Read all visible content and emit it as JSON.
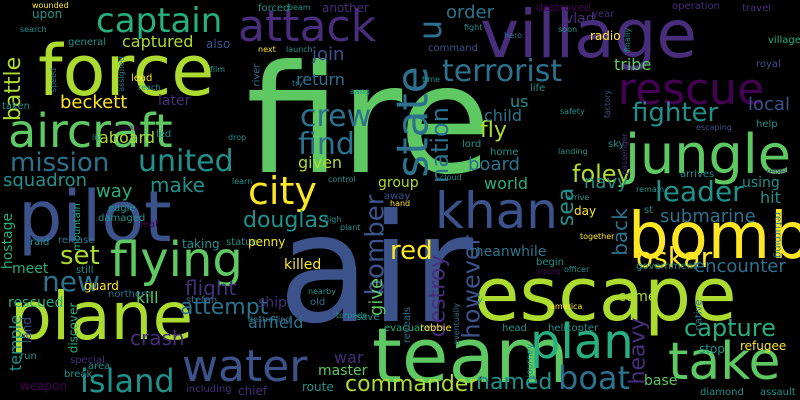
{
  "background": "#000000",
  "palette": [
    "#440154",
    "#472d7b",
    "#3b528b",
    "#2c728e",
    "#21918c",
    "#28ae80",
    "#5ec962",
    "#addc30",
    "#fde725"
  ],
  "words": [
    {
      "text": "fire",
      "color": "#5ec962"
    },
    {
      "text": "air",
      "color": "#3b528b"
    },
    {
      "text": "escape",
      "color": "#addc30"
    },
    {
      "text": "team",
      "color": "#5ec962"
    },
    {
      "text": "plane",
      "color": "#addc30"
    },
    {
      "text": "pilot",
      "color": "#3b528b"
    },
    {
      "text": "force",
      "color": "#addc30"
    },
    {
      "text": "village",
      "color": "#472d7b"
    },
    {
      "text": "bomb",
      "color": "#fde725"
    },
    {
      "text": "jungle",
      "color": "#5ec962"
    },
    {
      "text": "aircraft",
      "color": "#5ec962"
    },
    {
      "text": "take",
      "color": "#5ec962"
    },
    {
      "text": "khan",
      "color": "#3b528b"
    },
    {
      "text": "plan",
      "color": "#28ae80"
    },
    {
      "text": "water",
      "color": "#3b528b"
    },
    {
      "text": "rescue",
      "color": "#440154"
    },
    {
      "text": "flying",
      "color": "#5ec962"
    },
    {
      "text": "attack",
      "color": "#472d7b"
    },
    {
      "text": "captain",
      "color": "#28ae80"
    },
    {
      "text": "city",
      "color": "#fde725"
    },
    {
      "text": "state",
      "color": "#2c728e"
    },
    {
      "text": "island",
      "color": "#21918c"
    },
    {
      "text": "boat",
      "color": "#2c728e"
    },
    {
      "text": "terrorist",
      "color": "#2c728e"
    },
    {
      "text": "united",
      "color": "#21918c"
    },
    {
      "text": "mission",
      "color": "#2c728e"
    },
    {
      "text": "fighter",
      "color": "#21918c"
    },
    {
      "text": "leader",
      "color": "#21918c"
    },
    {
      "text": "find",
      "color": "#2c728e"
    },
    {
      "text": "crew",
      "color": "#2c728e"
    },
    {
      "text": "new",
      "color": "#2c728e"
    },
    {
      "text": "bomber",
      "color": "#3b528b"
    },
    {
      "text": "oskar",
      "color": "#fde725"
    },
    {
      "text": "set",
      "color": "#addc30"
    },
    {
      "text": "capture",
      "color": "#28ae80"
    },
    {
      "text": "commander",
      "color": "#addc30"
    },
    {
      "text": "foley",
      "color": "#addc30"
    },
    {
      "text": "attempt",
      "color": "#2c728e"
    },
    {
      "text": "douglas",
      "color": "#21918c"
    },
    {
      "text": "make",
      "color": "#21918c"
    },
    {
      "text": "nation",
      "color": "#2c728e"
    },
    {
      "text": "however",
      "color": "#3b528b"
    },
    {
      "text": "named",
      "color": "#21918c"
    },
    {
      "text": "crash",
      "color": "#472d7b"
    },
    {
      "text": "heavy",
      "color": "#472d7b"
    },
    {
      "text": "battle",
      "color": "#addc30"
    },
    {
      "text": "flight",
      "color": "#472d7b"
    },
    {
      "text": "destroy",
      "color": "#472d7b"
    },
    {
      "text": "local",
      "color": "#3b528b"
    },
    {
      "text": "sea",
      "color": "#21918c"
    },
    {
      "text": "back",
      "color": "#2c728e"
    },
    {
      "text": "red",
      "color": "#fde725"
    },
    {
      "text": "u",
      "color": "#2c728e"
    },
    {
      "text": "navy",
      "color": "#21918c"
    },
    {
      "text": "submarine",
      "color": "#2c728e"
    },
    {
      "text": "encounter",
      "color": "#2c728e"
    },
    {
      "text": "squadron",
      "color": "#21918c"
    },
    {
      "text": "way",
      "color": "#28ae80"
    },
    {
      "text": "captured",
      "color": "#addc30"
    },
    {
      "text": "beckett",
      "color": "#fde725"
    },
    {
      "text": "tribe",
      "color": "#5ec962"
    },
    {
      "text": "order",
      "color": "#2c728e"
    },
    {
      "text": "join",
      "color": "#3b528b"
    },
    {
      "text": "return",
      "color": "#2c728e"
    },
    {
      "text": "board",
      "color": "#2c728e"
    },
    {
      "text": "world",
      "color": "#28ae80"
    },
    {
      "text": "group",
      "color": "#addc30"
    },
    {
      "text": "using",
      "color": "#21918c"
    },
    {
      "text": "hit",
      "color": "#21918c"
    },
    {
      "text": "killed",
      "color": "#fde725"
    },
    {
      "text": "given",
      "color": "#addc30"
    },
    {
      "text": "fly",
      "color": "#addc30"
    },
    {
      "text": "us",
      "color": "#21918c"
    },
    {
      "text": "child",
      "color": "#2c728e"
    },
    {
      "text": "later",
      "color": "#472d7b"
    },
    {
      "text": "aboard",
      "color": "#addc30"
    },
    {
      "text": "kill",
      "color": "#5ec962"
    },
    {
      "text": "meet",
      "color": "#28ae80"
    },
    {
      "text": "rescued",
      "color": "#28ae80"
    },
    {
      "text": "temple",
      "color": "#21918c"
    },
    {
      "text": "ship",
      "color": "#472d7b"
    },
    {
      "text": "airfield",
      "color": "#2c728e"
    },
    {
      "text": "war",
      "color": "#472d7b"
    },
    {
      "text": "master",
      "color": "#5ec962"
    },
    {
      "text": "give",
      "color": "#5ec962"
    },
    {
      "text": "meanwhile",
      "color": "#2c728e"
    },
    {
      "text": "come",
      "color": "#addc30"
    },
    {
      "text": "base",
      "color": "#5ec962"
    },
    {
      "text": "refugee",
      "color": "#fde725"
    },
    {
      "text": "stop",
      "color": "#21918c"
    },
    {
      "text": "hostage",
      "color": "#28ae80"
    },
    {
      "text": "upon",
      "color": "#21918c"
    },
    {
      "text": "another",
      "color": "#472d7b"
    },
    {
      "text": "destroyed",
      "color": "#440154"
    },
    {
      "text": "vlad",
      "color": "#472d7b"
    },
    {
      "text": "year",
      "color": "#472d7b"
    },
    {
      "text": "operation",
      "color": "#472d7b"
    },
    {
      "text": "travel",
      "color": "#472d7b"
    },
    {
      "text": "royal",
      "color": "#3b528b"
    },
    {
      "text": "villager",
      "color": "#28ae80"
    },
    {
      "text": "help",
      "color": "#21918c"
    },
    {
      "text": "escaping",
      "color": "#3b528b"
    },
    {
      "text": "arrives",
      "color": "#21918c"
    },
    {
      "text": "remain",
      "color": "#21918c"
    },
    {
      "text": "leaf",
      "color": "#440154"
    },
    {
      "text": "eagle",
      "color": "#21918c"
    },
    {
      "text": "damaged",
      "color": "#21918c"
    },
    {
      "text": "mountain",
      "color": "#28ae80"
    },
    {
      "text": "discover",
      "color": "#28ae80"
    },
    {
      "text": "guard",
      "color": "#fde725"
    },
    {
      "text": "northern",
      "color": "#2c728e"
    },
    {
      "text": "stefan",
      "color": "#2c728e"
    },
    {
      "text": "taking",
      "color": "#21918c"
    },
    {
      "text": "statue",
      "color": "#21918c"
    },
    {
      "text": "penny",
      "color": "#fde725"
    },
    {
      "text": "release",
      "color": "#2c728e"
    },
    {
      "text": "raid",
      "color": "#21918c"
    },
    {
      "text": "still",
      "color": "#21918c"
    },
    {
      "text": "land",
      "color": "#3b528b"
    },
    {
      "text": "run",
      "color": "#21918c"
    },
    {
      "text": "special",
      "color": "#472d7b"
    },
    {
      "text": "break",
      "color": "#21918c"
    },
    {
      "text": "area",
      "color": "#21918c"
    },
    {
      "text": "weapon",
      "color": "#440154"
    },
    {
      "text": "including",
      "color": "#472d7b"
    },
    {
      "text": "chief",
      "color": "#472d7b"
    },
    {
      "text": "route",
      "color": "#21918c"
    },
    {
      "text": "torpedo",
      "color": "#21918c"
    },
    {
      "text": "destroying",
      "color": "#2c728e"
    },
    {
      "text": "old",
      "color": "#2c728e"
    },
    {
      "text": "nearby",
      "color": "#21918c"
    },
    {
      "text": "save",
      "color": "#21918c"
    },
    {
      "text": "evacuate",
      "color": "#28ae80"
    },
    {
      "text": "robbie",
      "color": "#fde725"
    },
    {
      "text": "head",
      "color": "#21918c"
    },
    {
      "text": "journey",
      "color": "#21918c"
    },
    {
      "text": "helicopter",
      "color": "#21918c"
    },
    {
      "text": "america",
      "color": "#fde725"
    },
    {
      "text": "diamond",
      "color": "#21918c"
    },
    {
      "text": "assault",
      "color": "#21918c"
    },
    {
      "text": "officer",
      "color": "#21918c"
    },
    {
      "text": "young",
      "color": "#440154"
    },
    {
      "text": "native",
      "color": "#2c728e"
    },
    {
      "text": "government",
      "color": "#21918c"
    },
    {
      "text": "together",
      "color": "#fde725"
    },
    {
      "text": "begin",
      "color": "#21918c"
    },
    {
      "text": "eventually",
      "color": "#2c728e"
    },
    {
      "text": "reveals",
      "color": "#2c728e"
    },
    {
      "text": "day",
      "color": "#fde725"
    },
    {
      "text": "arrive",
      "color": "#21918c"
    },
    {
      "text": "st",
      "color": "#21918c"
    },
    {
      "text": "sky",
      "color": "#21918c"
    },
    {
      "text": "rebel",
      "color": "#472d7b"
    },
    {
      "text": "cloud",
      "color": "#21918c"
    },
    {
      "text": "away",
      "color": "#3b528b"
    },
    {
      "text": "home",
      "color": "#21918c"
    },
    {
      "text": "lord",
      "color": "#21918c"
    },
    {
      "text": "life",
      "color": "#21918c"
    },
    {
      "text": "safety",
      "color": "#21918c"
    },
    {
      "text": "landing",
      "color": "#21918c"
    },
    {
      "text": "passenger",
      "color": "#472d7b"
    },
    {
      "text": "factory",
      "color": "#3b528b"
    },
    {
      "text": "finally",
      "color": "#21918c"
    },
    {
      "text": "radio",
      "color": "#fde725"
    },
    {
      "text": "soon",
      "color": "#21918c"
    },
    {
      "text": "hero",
      "color": "#2c728e"
    },
    {
      "text": "fight",
      "color": "#21918c"
    },
    {
      "text": "command",
      "color": "#3b528b"
    },
    {
      "text": "time",
      "color": "#21918c"
    },
    {
      "text": "aang",
      "color": "#21918c"
    },
    {
      "text": "launch",
      "color": "#21918c"
    },
    {
      "text": "beam",
      "color": "#21918c"
    },
    {
      "text": "forced",
      "color": "#21918c"
    },
    {
      "text": "next",
      "color": "#fde725"
    },
    {
      "text": "river",
      "color": "#2c728e"
    },
    {
      "text": "try",
      "color": "#2c728e"
    },
    {
      "text": "also",
      "color": "#3b528b"
    },
    {
      "text": "film",
      "color": "#21918c"
    },
    {
      "text": "reach",
      "color": "#21918c"
    },
    {
      "text": "lead",
      "color": "#fde725"
    },
    {
      "text": "speed",
      "color": "#2c728e"
    },
    {
      "text": "assigned",
      "color": "#2c728e"
    },
    {
      "text": "general",
      "color": "#21918c"
    },
    {
      "text": "search",
      "color": "#21918c"
    },
    {
      "text": "wounded",
      "color": "#fde725"
    },
    {
      "text": "taken",
      "color": "#21918c"
    },
    {
      "text": "liu",
      "color": "#21918c"
    },
    {
      "text": "jump",
      "color": "#440154"
    },
    {
      "text": "drop",
      "color": "#21918c"
    },
    {
      "text": "led",
      "color": "#21918c"
    },
    {
      "text": "learn",
      "color": "#21918c"
    },
    {
      "text": "control",
      "color": "#21918c"
    },
    {
      "text": "hand",
      "color": "#fde725"
    },
    {
      "text": "plant",
      "color": "#21918c"
    },
    {
      "text": "high",
      "color": "#21918c"
    },
    {
      "text": "v",
      "color": "#21918c"
    },
    {
      "text": "returning",
      "color": "#2c728e"
    }
  ]
}
